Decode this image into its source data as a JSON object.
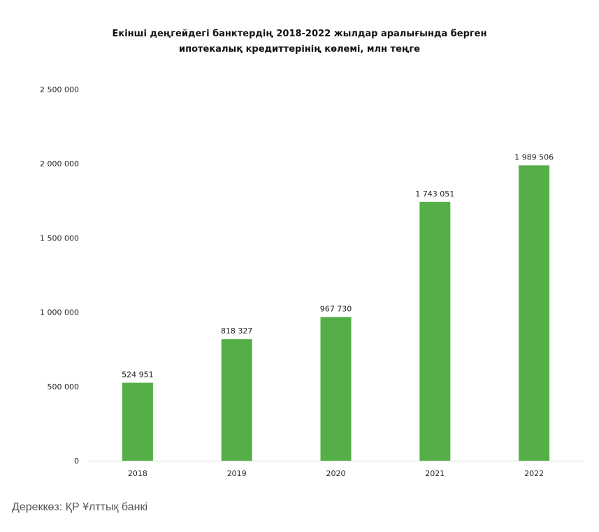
{
  "chart_data": {
    "type": "bar",
    "title_lines": [
      "Екінші деңгейдегі банктердің 2018-2022 жылдар аралығында берген",
      "ипотекалық кредиттерінің көлемі, млн теңге"
    ],
    "categories": [
      "2018",
      "2019",
      "2020",
      "2021",
      "2022"
    ],
    "values": [
      524951,
      818327,
      967730,
      1743051,
      1989506
    ],
    "data_labels": [
      "524 951",
      "818 327",
      "967 730",
      "1 743 051",
      "1 989 506"
    ],
    "ylim": [
      0,
      2500000
    ],
    "yticks": [
      0,
      500000,
      1000000,
      1500000,
      2000000,
      2500000
    ],
    "ytick_labels": [
      "0",
      "500 000",
      "1 000 000",
      "1 500 000",
      "2 000 000",
      "2 500 000"
    ],
    "grid": false,
    "legend": "none",
    "bar_color": "#54b046"
  },
  "source_note": "Дереккөз: ҚР Ұлттық банкі"
}
